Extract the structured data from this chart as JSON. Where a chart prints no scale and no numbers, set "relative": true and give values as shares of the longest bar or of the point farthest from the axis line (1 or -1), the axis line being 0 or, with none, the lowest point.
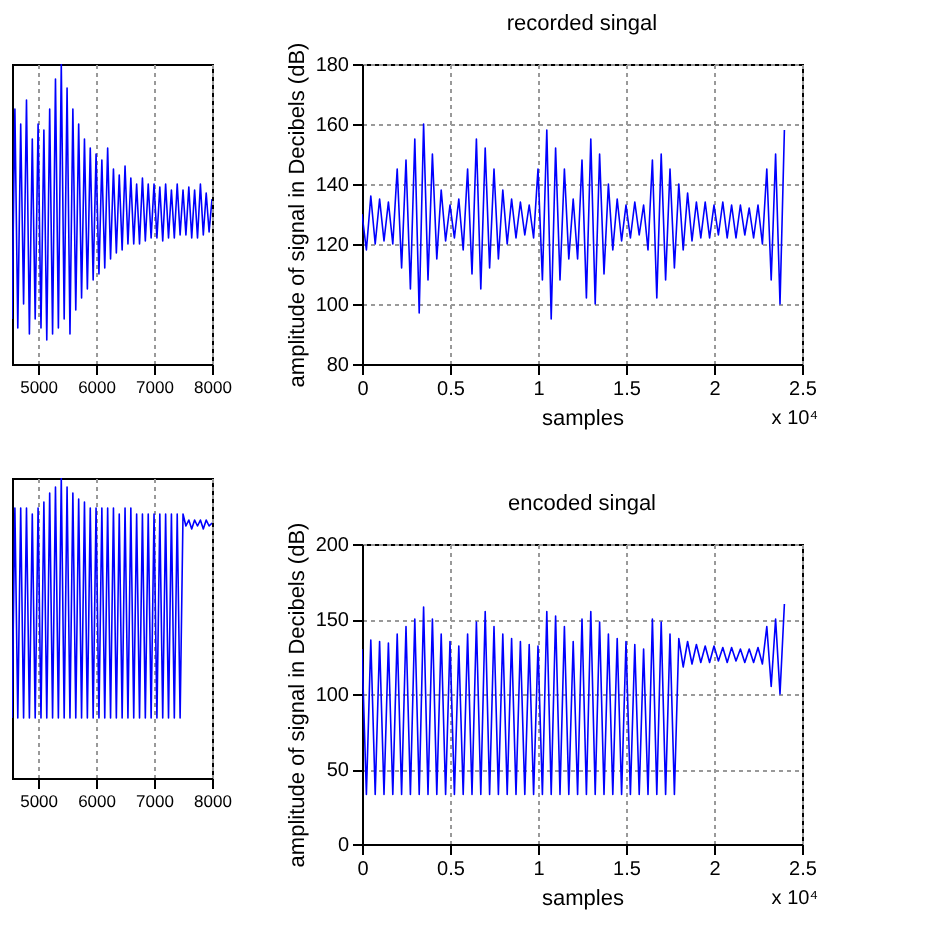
{
  "chart_data": [
    {
      "type": "line",
      "relative": true,
      "tick_labels": "x",
      "grid": "x",
      "color": "#0000ff",
      "xlim": [
        4550,
        8000
      ],
      "xticks": [
        5000,
        6000,
        7000,
        8000
      ],
      "x": [
        4550,
        4600,
        4650,
        4700,
        4750,
        4800,
        4850,
        4900,
        4950,
        5000,
        5050,
        5100,
        5150,
        5200,
        5250,
        5300,
        5350,
        5400,
        5450,
        5500,
        5550,
        5600,
        5650,
        5700,
        5750,
        5800,
        5850,
        5900,
        5950,
        6000,
        6050,
        6100,
        6150,
        6200,
        6250,
        6300,
        6350,
        6400,
        6450,
        6500,
        6550,
        6600,
        6650,
        6700,
        6750,
        6800,
        6850,
        6900,
        6950,
        7000,
        7050,
        7100,
        7150,
        7200,
        7250,
        7300,
        7350,
        7400,
        7450,
        7500,
        7550,
        7600,
        7650,
        7700,
        7750,
        7800,
        7850,
        7900,
        7950,
        8000
      ],
      "values": [
        0.15,
        0.85,
        0.12,
        0.8,
        0.2,
        0.88,
        0.1,
        0.75,
        0.15,
        0.8,
        0.12,
        0.78,
        0.08,
        0.85,
        0.1,
        0.95,
        0.12,
        1.0,
        0.15,
        0.92,
        0.1,
        0.85,
        0.18,
        0.8,
        0.22,
        0.75,
        0.25,
        0.72,
        0.28,
        0.7,
        0.3,
        0.68,
        0.32,
        0.72,
        0.35,
        0.65,
        0.37,
        0.63,
        0.38,
        0.66,
        0.4,
        0.62,
        0.4,
        0.6,
        0.4,
        0.62,
        0.41,
        0.6,
        0.42,
        0.6,
        0.42,
        0.59,
        0.41,
        0.6,
        0.42,
        0.58,
        0.42,
        0.6,
        0.43,
        0.58,
        0.43,
        0.59,
        0.42,
        0.58,
        0.42,
        0.6,
        0.43,
        0.57,
        0.44,
        0.55
      ]
    },
    {
      "type": "line",
      "title": "recorded singal",
      "xlabel": "samples",
      "ylabel": "amplitude of signal in Decibels (dB)",
      "annotations": [
        "x 10⁴"
      ],
      "grid": true,
      "color": "#0000ff",
      "xlim": [
        0,
        2.5
      ],
      "xticks": [
        0,
        0.5,
        1,
        1.5,
        2,
        2.5
      ],
      "ylim": [
        80,
        180
      ],
      "yticks": [
        80,
        100,
        120,
        140,
        160,
        180
      ],
      "x": [
        0,
        0.025,
        0.05,
        0.075,
        0.1,
        0.125,
        0.15,
        0.175,
        0.2,
        0.225,
        0.25,
        0.275,
        0.3,
        0.325,
        0.35,
        0.375,
        0.4,
        0.425,
        0.45,
        0.475,
        0.5,
        0.525,
        0.55,
        0.575,
        0.6,
        0.625,
        0.65,
        0.675,
        0.7,
        0.725,
        0.75,
        0.775,
        0.8,
        0.825,
        0.85,
        0.875,
        0.9,
        0.925,
        0.95,
        0.975,
        1,
        1.025,
        1.05,
        1.075,
        1.1,
        1.125,
        1.15,
        1.175,
        1.2,
        1.225,
        1.25,
        1.275,
        1.3,
        1.325,
        1.35,
        1.375,
        1.4,
        1.425,
        1.45,
        1.475,
        1.5,
        1.525,
        1.55,
        1.575,
        1.6,
        1.625,
        1.65,
        1.675,
        1.7,
        1.725,
        1.75,
        1.775,
        1.8,
        1.825,
        1.85,
        1.875,
        1.9,
        1.925,
        1.95,
        1.975,
        2,
        2.025,
        2.05,
        2.075,
        2.1,
        2.125,
        2.15,
        2.175,
        2.2,
        2.225,
        2.25,
        2.275,
        2.3,
        2.325,
        2.35,
        2.375,
        2.4
      ],
      "values": [
        130,
        118,
        136,
        120,
        135,
        121,
        134,
        120,
        145,
        112,
        148,
        105,
        155,
        97,
        160,
        108,
        150,
        115,
        138,
        121,
        133,
        122,
        135,
        118,
        145,
        110,
        155,
        105,
        152,
        112,
        145,
        115,
        138,
        120,
        135,
        122,
        134,
        123,
        133,
        122,
        145,
        108,
        158,
        95,
        152,
        108,
        145,
        115,
        135,
        115,
        148,
        102,
        155,
        100,
        150,
        110,
        140,
        118,
        135,
        121,
        133,
        122,
        134,
        123,
        133,
        118,
        148,
        102,
        150,
        108,
        145,
        112,
        140,
        118,
        137,
        121,
        134,
        122,
        134,
        122,
        133,
        123,
        134,
        122,
        133,
        122,
        133,
        123,
        132,
        122,
        133,
        120,
        145,
        108,
        150,
        100,
        158
      ]
    },
    {
      "type": "line",
      "relative": true,
      "tick_labels": "x",
      "grid": "x",
      "color": "#0000ff",
      "xlim": [
        4550,
        8000
      ],
      "xticks": [
        5000,
        6000,
        7000,
        8000
      ],
      "x": [
        4550,
        4600,
        4650,
        4700,
        4750,
        4800,
        4850,
        4900,
        4950,
        5000,
        5050,
        5100,
        5150,
        5200,
        5250,
        5300,
        5350,
        5400,
        5450,
        5500,
        5550,
        5600,
        5650,
        5700,
        5750,
        5800,
        5850,
        5900,
        5950,
        6000,
        6050,
        6100,
        6150,
        6200,
        6250,
        6300,
        6350,
        6400,
        6450,
        6500,
        6550,
        6600,
        6650,
        6700,
        6750,
        6800,
        6850,
        6900,
        6950,
        7000,
        7050,
        7100,
        7150,
        7200,
        7250,
        7300,
        7350,
        7400,
        7450,
        7500,
        7550,
        7600,
        7650,
        7700,
        7750,
        7800,
        7850,
        7900,
        7950,
        8000
      ],
      "values": [
        0.2,
        0.9,
        0.2,
        0.9,
        0.2,
        0.9,
        0.2,
        0.88,
        0.2,
        0.9,
        0.2,
        0.92,
        0.2,
        0.95,
        0.2,
        0.97,
        0.2,
        1.0,
        0.2,
        0.97,
        0.2,
        0.95,
        0.2,
        0.93,
        0.2,
        0.92,
        0.2,
        0.9,
        0.2,
        0.9,
        0.2,
        0.9,
        0.2,
        0.9,
        0.2,
        0.9,
        0.2,
        0.88,
        0.2,
        0.9,
        0.2,
        0.9,
        0.2,
        0.88,
        0.2,
        0.88,
        0.2,
        0.88,
        0.2,
        0.88,
        0.2,
        0.88,
        0.2,
        0.88,
        0.2,
        0.88,
        0.2,
        0.88,
        0.2,
        0.88,
        0.84,
        0.86,
        0.83,
        0.86,
        0.84,
        0.86,
        0.83,
        0.86,
        0.84,
        0.85
      ]
    },
    {
      "type": "line",
      "title": "encoded singal",
      "xlabel": "samples",
      "ylabel": "amplitude of signal in Decibels (dB)",
      "annotations": [
        "x 10⁴"
      ],
      "grid": true,
      "color": "#0000ff",
      "xlim": [
        0,
        2.5
      ],
      "xticks": [
        0,
        0.5,
        1,
        1.5,
        2,
        2.5
      ],
      "ylim": [
        0,
        200
      ],
      "yticks": [
        0,
        50,
        100,
        150,
        200
      ],
      "x": [
        0,
        0.025,
        0.05,
        0.075,
        0.1,
        0.125,
        0.15,
        0.175,
        0.2,
        0.225,
        0.25,
        0.275,
        0.3,
        0.325,
        0.35,
        0.375,
        0.4,
        0.425,
        0.45,
        0.475,
        0.5,
        0.525,
        0.55,
        0.575,
        0.6,
        0.625,
        0.65,
        0.675,
        0.7,
        0.725,
        0.75,
        0.775,
        0.8,
        0.825,
        0.85,
        0.875,
        0.9,
        0.925,
        0.95,
        0.975,
        1,
        1.025,
        1.05,
        1.075,
        1.1,
        1.125,
        1.15,
        1.175,
        1.2,
        1.225,
        1.25,
        1.275,
        1.3,
        1.325,
        1.35,
        1.375,
        1.4,
        1.425,
        1.45,
        1.475,
        1.5,
        1.525,
        1.55,
        1.575,
        1.6,
        1.625,
        1.65,
        1.675,
        1.7,
        1.725,
        1.75,
        1.775,
        1.8,
        1.825,
        1.85,
        1.875,
        1.9,
        1.925,
        1.95,
        1.975,
        2,
        2.025,
        2.05,
        2.075,
        2.1,
        2.125,
        2.15,
        2.175,
        2.2,
        2.225,
        2.25,
        2.275,
        2.3,
        2.325,
        2.35,
        2.375,
        2.4
      ],
      "values": [
        130,
        33,
        136,
        33,
        135,
        33,
        134,
        33,
        140,
        33,
        145,
        33,
        150,
        33,
        158,
        33,
        150,
        33,
        140,
        33,
        135,
        33,
        132,
        33,
        140,
        33,
        148,
        33,
        155,
        33,
        145,
        33,
        140,
        33,
        137,
        33,
        135,
        33,
        133,
        33,
        132,
        33,
        155,
        33,
        152,
        33,
        145,
        33,
        135,
        33,
        150,
        33,
        155,
        33,
        148,
        33,
        140,
        33,
        137,
        33,
        135,
        33,
        133,
        33,
        130,
        33,
        150,
        33,
        148,
        33,
        140,
        33,
        137,
        118,
        135,
        120,
        133,
        121,
        132,
        121,
        132,
        122,
        131,
        121,
        131,
        122,
        130,
        121,
        130,
        121,
        131,
        120,
        145,
        105,
        150,
        100,
        160
      ]
    }
  ]
}
